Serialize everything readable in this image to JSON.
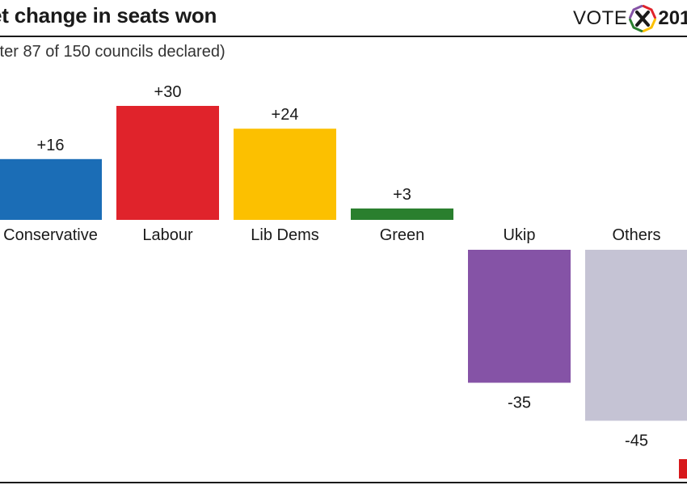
{
  "header": {
    "title": "et change in seats won",
    "subtitle": "fter 87 of 150 councils declared)",
    "logo_word": "VOTE",
    "logo_year": "201"
  },
  "logo_icon": "vote-x-ballot-icon",
  "chart_data": {
    "type": "bar",
    "title": "et change in seats won",
    "subtitle": "fter 87 of 150 councils declared)",
    "categories": [
      "Conservative",
      "Labour",
      "Lib Dems",
      "Green",
      "Ukip",
      "Others"
    ],
    "values": [
      16,
      30,
      24,
      3,
      -35,
      -45
    ],
    "value_labels": [
      "+16",
      "+30",
      "+24",
      "+3",
      "-35",
      "-45"
    ],
    "colors": [
      "#1b6db6",
      "#e0232b",
      "#fcc000",
      "#2a7f2e",
      "#8553a6",
      "#c5c3d4"
    ],
    "xlabel": "",
    "ylabel": "",
    "ylim": [
      -45,
      30
    ],
    "grid": false,
    "legend": "none"
  },
  "accent_colors": {
    "text": "#1a1a1a",
    "brand_red": "#d7191c"
  }
}
